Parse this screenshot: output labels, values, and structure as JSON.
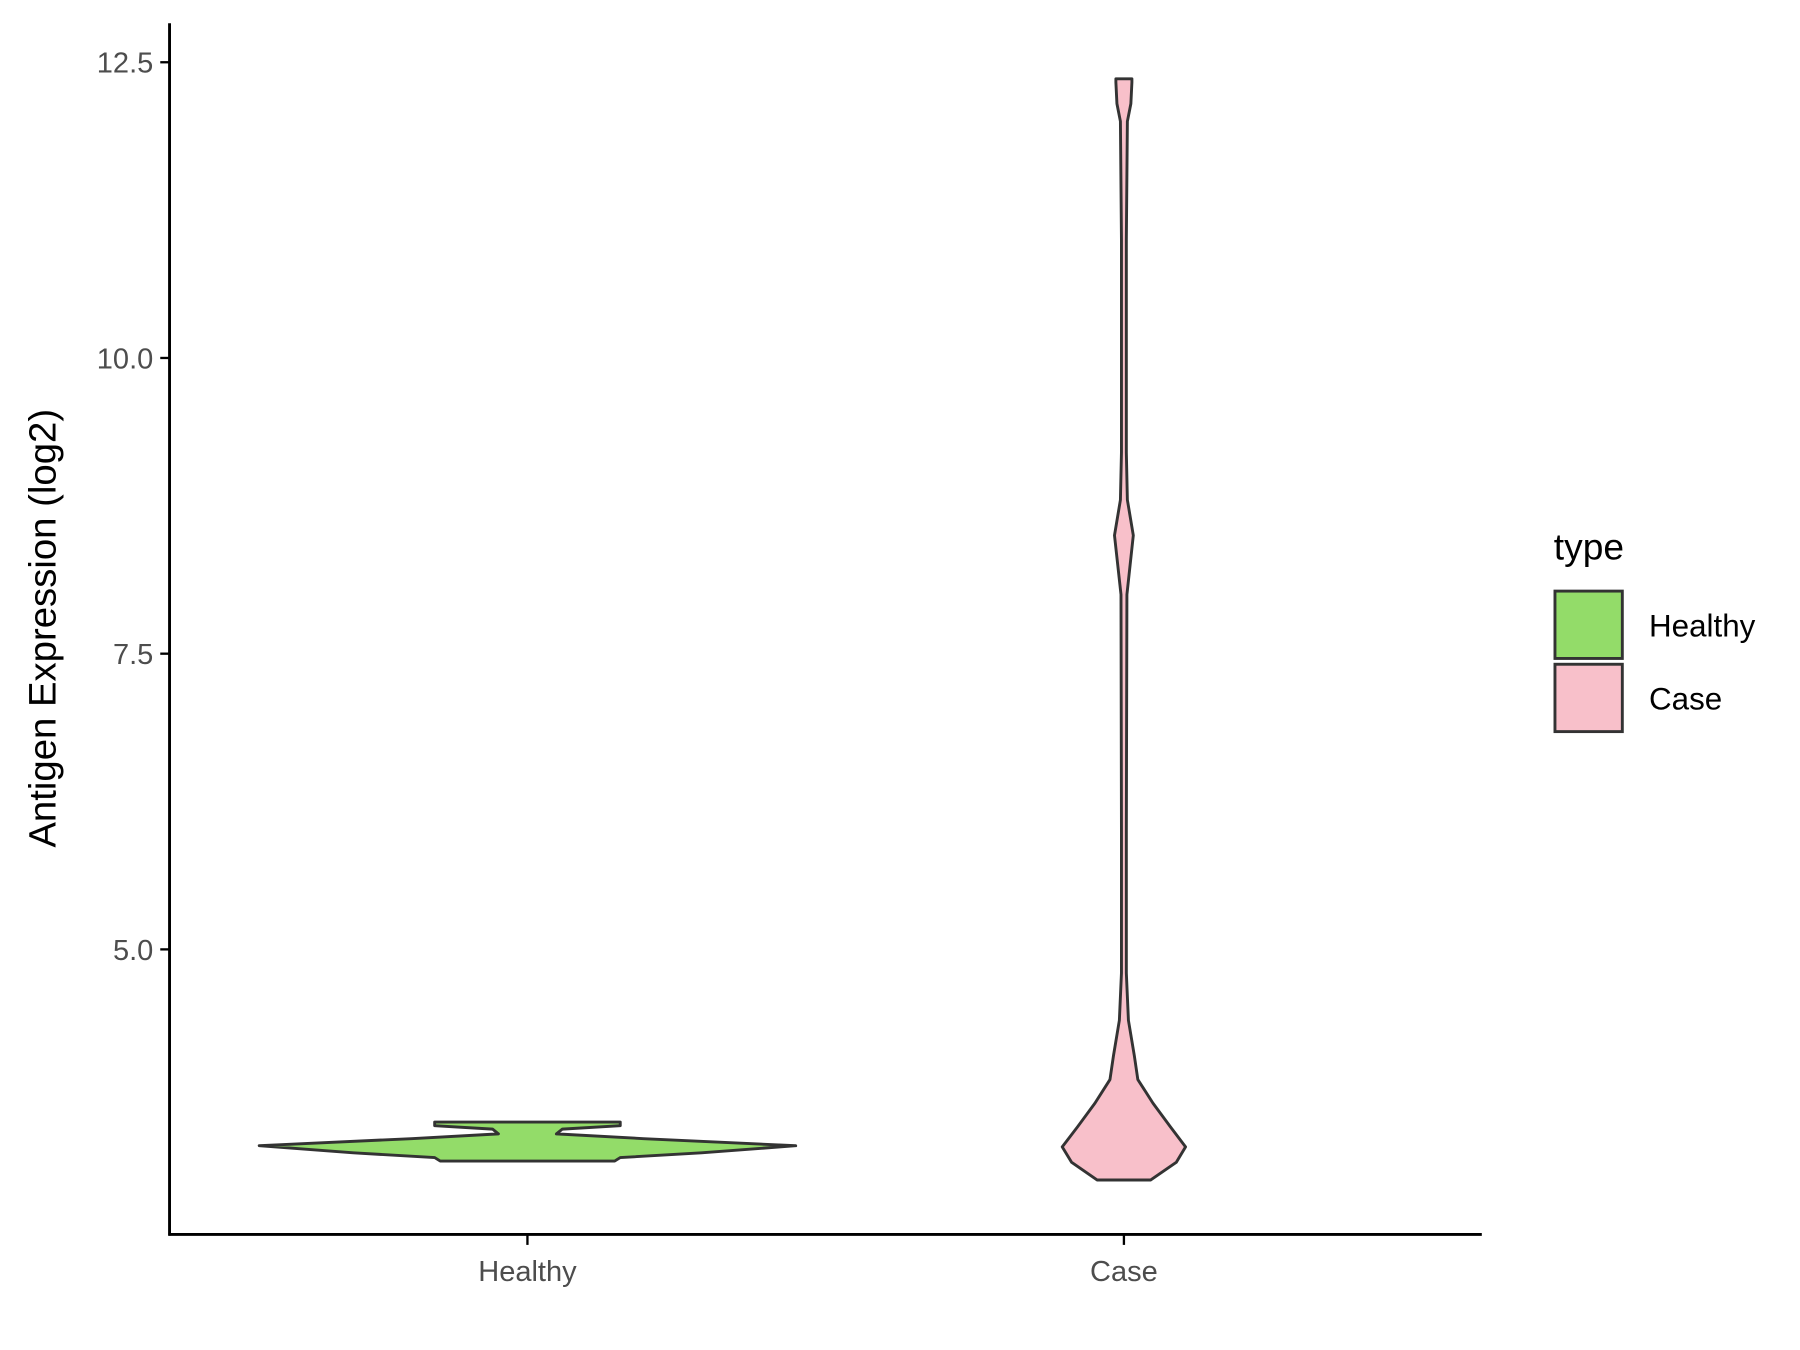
{
  "chart_data": {
    "type": "violin",
    "y_label": "Antigen Expression (log2)",
    "categories": [
      "Healthy",
      "Case"
    ],
    "ylim": [
      2.59,
      12.83
    ],
    "yticks": [
      {
        "value": 5,
        "label": "5.0"
      },
      7.5,
      {
        "value": 10,
        "label": "10.0"
      },
      12.5
    ],
    "legend_title": "type",
    "legend_position": "right",
    "series": [
      {
        "name": "Healthy",
        "color": "#93dc69",
        "y": [
          3.21,
          3.24,
          3.28,
          3.34,
          3.4,
          3.44,
          3.48,
          3.51,
          3.54
        ],
        "density": [
          0.325,
          0.346,
          0.649,
          1.0,
          0.433,
          0.108,
          0.13,
          0.346,
          0.346
        ]
      },
      {
        "name": "Case",
        "color": "#f8c0ca",
        "y": [
          3.05,
          3.2,
          3.33,
          3.5,
          3.7,
          3.9,
          4.1,
          4.4,
          4.8,
          6.0,
          8.0,
          8.5,
          8.8,
          9.2,
          11.0,
          12.0,
          12.15,
          12.33,
          12.36
        ],
        "density": [
          0.1,
          0.195,
          0.23,
          0.173,
          0.108,
          0.052,
          0.039,
          0.017,
          0.009,
          0.009,
          0.011,
          0.035,
          0.013,
          0.009,
          0.009,
          0.013,
          0.026,
          0.03,
          0.03
        ]
      }
    ]
  }
}
